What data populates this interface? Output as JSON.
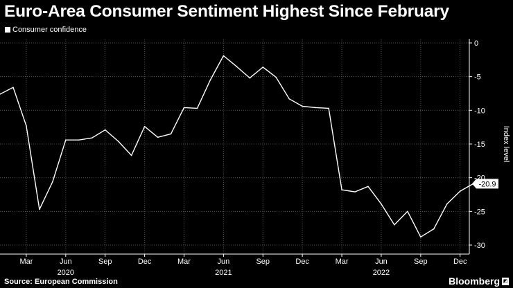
{
  "title": "Euro-Area Consumer Sentiment Highest Since February",
  "legend": {
    "label": "Consumer confidence",
    "color": "#ffffff"
  },
  "source": "Source: European Commission",
  "brand": {
    "name": "Bloomberg",
    "icon": "bloomberg-logo-icon"
  },
  "colors": {
    "background": "#000000",
    "line": "#ffffff",
    "grid": "#555555"
  },
  "chart_data": {
    "type": "line",
    "title": "Euro-Area Consumer Sentiment Highest Since February",
    "ylabel": "Index level",
    "xlabel": "",
    "ylim": [
      -31,
      0.5
    ],
    "yticks": [
      0,
      -5,
      -10,
      -15,
      -20,
      -25,
      -30
    ],
    "xlim": [
      0,
      35.7
    ],
    "grid": true,
    "legend_position": "top-left",
    "x_ticks": [
      {
        "x": 2,
        "label": "Mar"
      },
      {
        "x": 5,
        "label": "Jun"
      },
      {
        "x": 8,
        "label": "Sep"
      },
      {
        "x": 11,
        "label": "Dec"
      },
      {
        "x": 14,
        "label": "Mar"
      },
      {
        "x": 17,
        "label": "Jun"
      },
      {
        "x": 20,
        "label": "Sep"
      },
      {
        "x": 23,
        "label": "Dec"
      },
      {
        "x": 26,
        "label": "Mar"
      },
      {
        "x": 29,
        "label": "Jun"
      },
      {
        "x": 32,
        "label": "Sep"
      },
      {
        "x": 35,
        "label": "Dec"
      }
    ],
    "year_labels": [
      {
        "x": 5,
        "label": "2020"
      },
      {
        "x": 17,
        "label": "2021"
      },
      {
        "x": 29,
        "label": "2022"
      }
    ],
    "last_value_label": "-20.9",
    "series": [
      {
        "name": "Consumer confidence",
        "x": [
          0,
          1,
          2,
          3,
          4,
          5,
          6,
          7,
          8,
          9,
          10,
          11,
          12,
          13,
          14,
          15,
          16,
          17,
          18,
          19,
          20,
          21,
          22,
          23,
          24,
          25,
          26,
          27,
          28,
          29,
          30,
          31,
          32,
          33,
          34,
          35,
          36
        ],
        "values": [
          -7.6,
          -6.6,
          -12.3,
          -24.7,
          -20.6,
          -14.4,
          -14.4,
          -14.1,
          -12.9,
          -14.6,
          -16.7,
          -12.4,
          -14.0,
          -13.5,
          -9.6,
          -9.7,
          -5.5,
          -1.9,
          -3.5,
          -5.2,
          -3.6,
          -5.1,
          -8.3,
          -9.4,
          -9.6,
          -9.7,
          -21.8,
          -22.1,
          -21.3,
          -23.9,
          -27.0,
          -25.0,
          -28.8,
          -27.6,
          -23.9,
          -22.0,
          -20.9
        ]
      }
    ]
  }
}
